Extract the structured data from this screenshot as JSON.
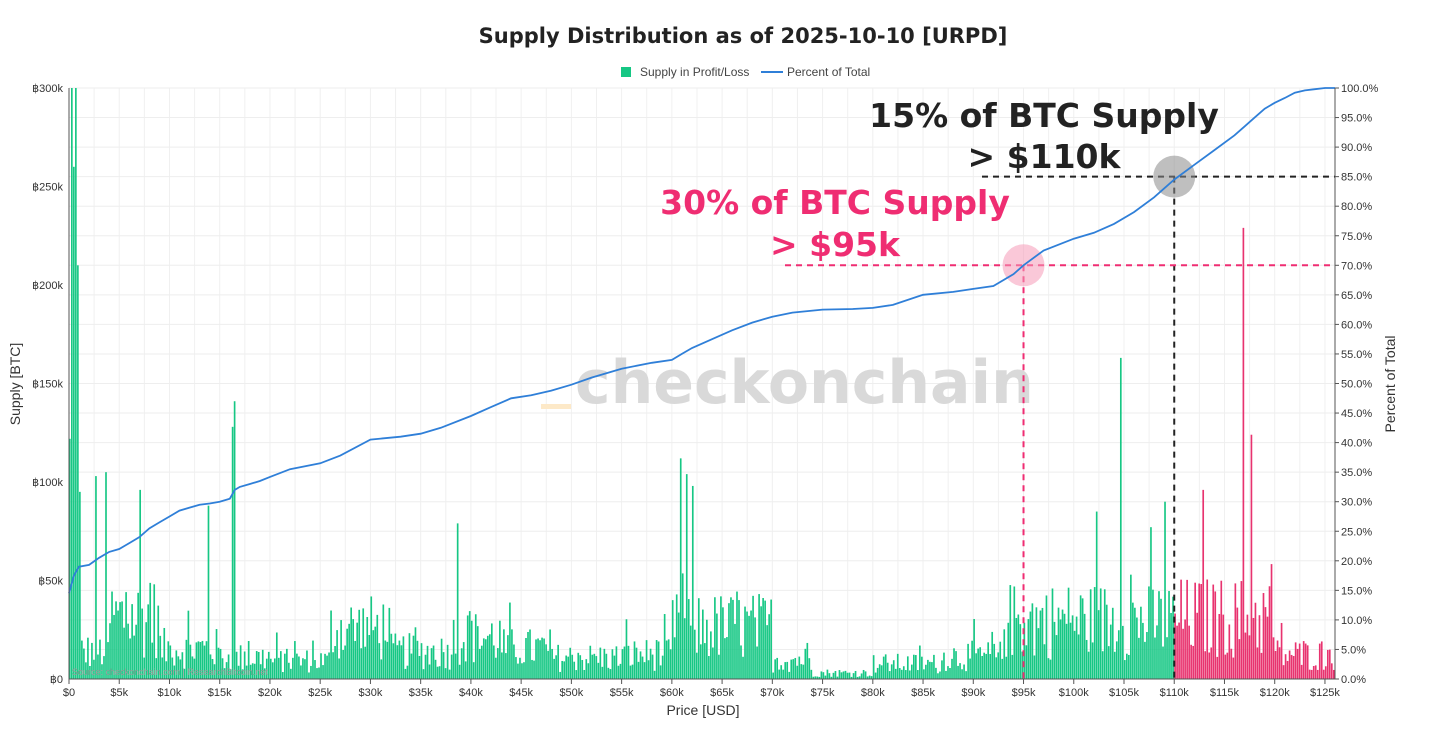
{
  "chart_data": {
    "type": "bar+line",
    "title": "Supply Distribution as of 2025-10-10 [URPD]",
    "xlabel": "Price [USD]",
    "ylabel": "Supply [BTC]",
    "y2label": "Percent of Total",
    "xlim": [
      0,
      126000
    ],
    "ylim": [
      0,
      300000
    ],
    "y2lim": [
      0,
      100
    ],
    "x_ticks": [
      0,
      5000,
      10000,
      15000,
      20000,
      25000,
      30000,
      35000,
      40000,
      45000,
      50000,
      55000,
      60000,
      65000,
      70000,
      75000,
      80000,
      85000,
      90000,
      95000,
      100000,
      105000,
      110000,
      115000,
      120000,
      125000
    ],
    "x_tick_labels": [
      "$0",
      "$5k",
      "$10k",
      "$15k",
      "$20k",
      "$25k",
      "$30k",
      "$35k",
      "$40k",
      "$45k",
      "$50k",
      "$55k",
      "$60k",
      "$65k",
      "$70k",
      "$75k",
      "$80k",
      "$85k",
      "$90k",
      "$95k",
      "$100k",
      "$105k",
      "$110k",
      "$115k",
      "$120k",
      "$125k"
    ],
    "y_ticks": [
      0,
      50000,
      100000,
      150000,
      200000,
      250000,
      300000
    ],
    "y_tick_labels": [
      "฿0",
      "฿50k",
      "฿100k",
      "฿150k",
      "฿200k",
      "฿250k",
      "฿300k"
    ],
    "y2_ticks": [
      0,
      5,
      10,
      15,
      20,
      25,
      30,
      35,
      40,
      45,
      50,
      55,
      60,
      65,
      70,
      75,
      80,
      85,
      90,
      95,
      100
    ],
    "y2_tick_labels": [
      "0.0%",
      "5.0%",
      "10.0%",
      "15.0%",
      "20.0%",
      "25.0%",
      "30.0%",
      "35.0%",
      "40.0%",
      "45.0%",
      "50.0%",
      "55.0%",
      "60.0%",
      "65.0%",
      "70.0%",
      "75.0%",
      "80.0%",
      "85.0%",
      "90.0%",
      "95.0%",
      "100.0%"
    ],
    "current_price": 110000,
    "colors": {
      "profit": "#16c784",
      "loss": "#e8336f",
      "line": "#2f7fd8",
      "pink": "#ef2d72",
      "dark": "#222222"
    },
    "legend": [
      {
        "name": "Supply in Profit/Loss",
        "kind": "bar"
      },
      {
        "name": "Percent of Total",
        "kind": "line"
      }
    ],
    "percent_line": {
      "x": [
        0,
        500,
        1000,
        2000,
        3000,
        4000,
        5000,
        6000,
        7000,
        8000,
        9000,
        10000,
        11000,
        12000,
        13000,
        14000,
        15000,
        16000,
        16500,
        17000,
        18000,
        19000,
        20000,
        22000,
        25000,
        27000,
        30000,
        33000,
        35000,
        37000,
        40000,
        42000,
        44000,
        46000,
        48000,
        50000,
        52000,
        55000,
        58000,
        60000,
        61000,
        62000,
        64000,
        66000,
        68000,
        70000,
        72000,
        75000,
        78000,
        80000,
        82000,
        85000,
        88000,
        90000,
        92000,
        94000,
        95000,
        97000,
        100000,
        102000,
        104000,
        106000,
        108000,
        110000,
        112000,
        114000,
        116000,
        117000,
        118000,
        119000,
        120000,
        121000,
        122000,
        123000,
        124000,
        125000,
        126000
      ],
      "y": [
        14.5,
        17.5,
        19.0,
        19.3,
        20.5,
        21.5,
        22.0,
        23.0,
        24.0,
        25.5,
        26.5,
        27.5,
        28.5,
        29.0,
        29.5,
        29.7,
        30.0,
        30.5,
        32.0,
        32.5,
        33.0,
        33.5,
        34.2,
        35.5,
        36.5,
        37.8,
        40.5,
        41.0,
        41.5,
        42.5,
        44.5,
        46.0,
        47.5,
        48.0,
        48.8,
        49.8,
        51.0,
        52.5,
        53.5,
        54.0,
        55.0,
        56.0,
        57.5,
        59.0,
        60.3,
        61.3,
        62.0,
        62.5,
        62.6,
        62.8,
        63.3,
        65.0,
        65.5,
        66.0,
        66.5,
        68.5,
        70.0,
        72.5,
        74.5,
        75.5,
        77.0,
        79.0,
        81.5,
        84.5,
        87.0,
        89.5,
        92.0,
        93.5,
        95.0,
        96.5,
        97.5,
        98.3,
        99.2,
        99.6,
        99.8,
        100.0,
        100.0
      ]
    },
    "bar_profiles": {
      "bin_width_usd": 200,
      "segments": [
        {
          "x_start": 0,
          "x_end": 1000,
          "base_btc": 130000
        },
        {
          "x_start": 1000,
          "x_end": 4000,
          "base_btc": 18000
        },
        {
          "x_start": 4000,
          "x_end": 9000,
          "base_btc": 40000
        },
        {
          "x_start": 9000,
          "x_end": 15000,
          "base_btc": 20000
        },
        {
          "x_start": 15000,
          "x_end": 20000,
          "base_btc": 14000
        },
        {
          "x_start": 20000,
          "x_end": 26000,
          "base_btc": 12000
        },
        {
          "x_start": 26000,
          "x_end": 32000,
          "base_btc": 33000
        },
        {
          "x_start": 32000,
          "x_end": 38000,
          "base_btc": 18000
        },
        {
          "x_start": 38000,
          "x_end": 43000,
          "base_btc": 27000
        },
        {
          "x_start": 43000,
          "x_end": 48000,
          "base_btc": 20000
        },
        {
          "x_start": 48000,
          "x_end": 55000,
          "base_btc": 14000
        },
        {
          "x_start": 55000,
          "x_end": 60000,
          "base_btc": 16000
        },
        {
          "x_start": 60000,
          "x_end": 70000,
          "base_btc": 34000
        },
        {
          "x_start": 70000,
          "x_end": 74000,
          "base_btc": 13000
        },
        {
          "x_start": 74000,
          "x_end": 80000,
          "base_btc": 4000
        },
        {
          "x_start": 80000,
          "x_end": 87000,
          "base_btc": 10000
        },
        {
          "x_start": 87000,
          "x_end": 93000,
          "base_btc": 15000
        },
        {
          "x_start": 93000,
          "x_end": 100000,
          "base_btc": 38000
        },
        {
          "x_start": 100000,
          "x_end": 110000,
          "base_btc": 38000
        },
        {
          "x_start": 110000,
          "x_end": 120000,
          "base_btc": 40000
        },
        {
          "x_start": 120000,
          "x_end": 126000,
          "base_btc": 16000
        }
      ],
      "spikes": [
        {
          "x": 200,
          "y": 300000
        },
        {
          "x": 400,
          "y": 260000
        },
        {
          "x": 600,
          "y": 300000
        },
        {
          "x": 800,
          "y": 210000
        },
        {
          "x": 1000,
          "y": 95000
        },
        {
          "x": 2600,
          "y": 103000
        },
        {
          "x": 3600,
          "y": 105000
        },
        {
          "x": 7000,
          "y": 96000
        },
        {
          "x": 16400,
          "y": 141000
        },
        {
          "x": 16200,
          "y": 128000
        },
        {
          "x": 13800,
          "y": 88000
        },
        {
          "x": 38600,
          "y": 79000
        },
        {
          "x": 60800,
          "y": 112000
        },
        {
          "x": 61400,
          "y": 104000
        },
        {
          "x": 62000,
          "y": 98000
        },
        {
          "x": 104600,
          "y": 163000
        },
        {
          "x": 102200,
          "y": 85000
        },
        {
          "x": 109000,
          "y": 90000
        },
        {
          "x": 116800,
          "y": 229000
        },
        {
          "x": 117600,
          "y": 124000
        },
        {
          "x": 112800,
          "y": 96000
        }
      ]
    }
  },
  "annotations": {
    "black_line1": "15% of BTC Supply",
    "black_line2": "> $110k",
    "pink_line1": "30% of BTC Supply",
    "pink_line2": "> $95k",
    "black_marker": {
      "x": 110000,
      "y2": 85
    },
    "pink_marker": {
      "x": 95000,
      "y2": 70
    }
  },
  "watermark": "checkonchain",
  "source": "Source: checkonchain.com | ResearchBitcoin.net"
}
